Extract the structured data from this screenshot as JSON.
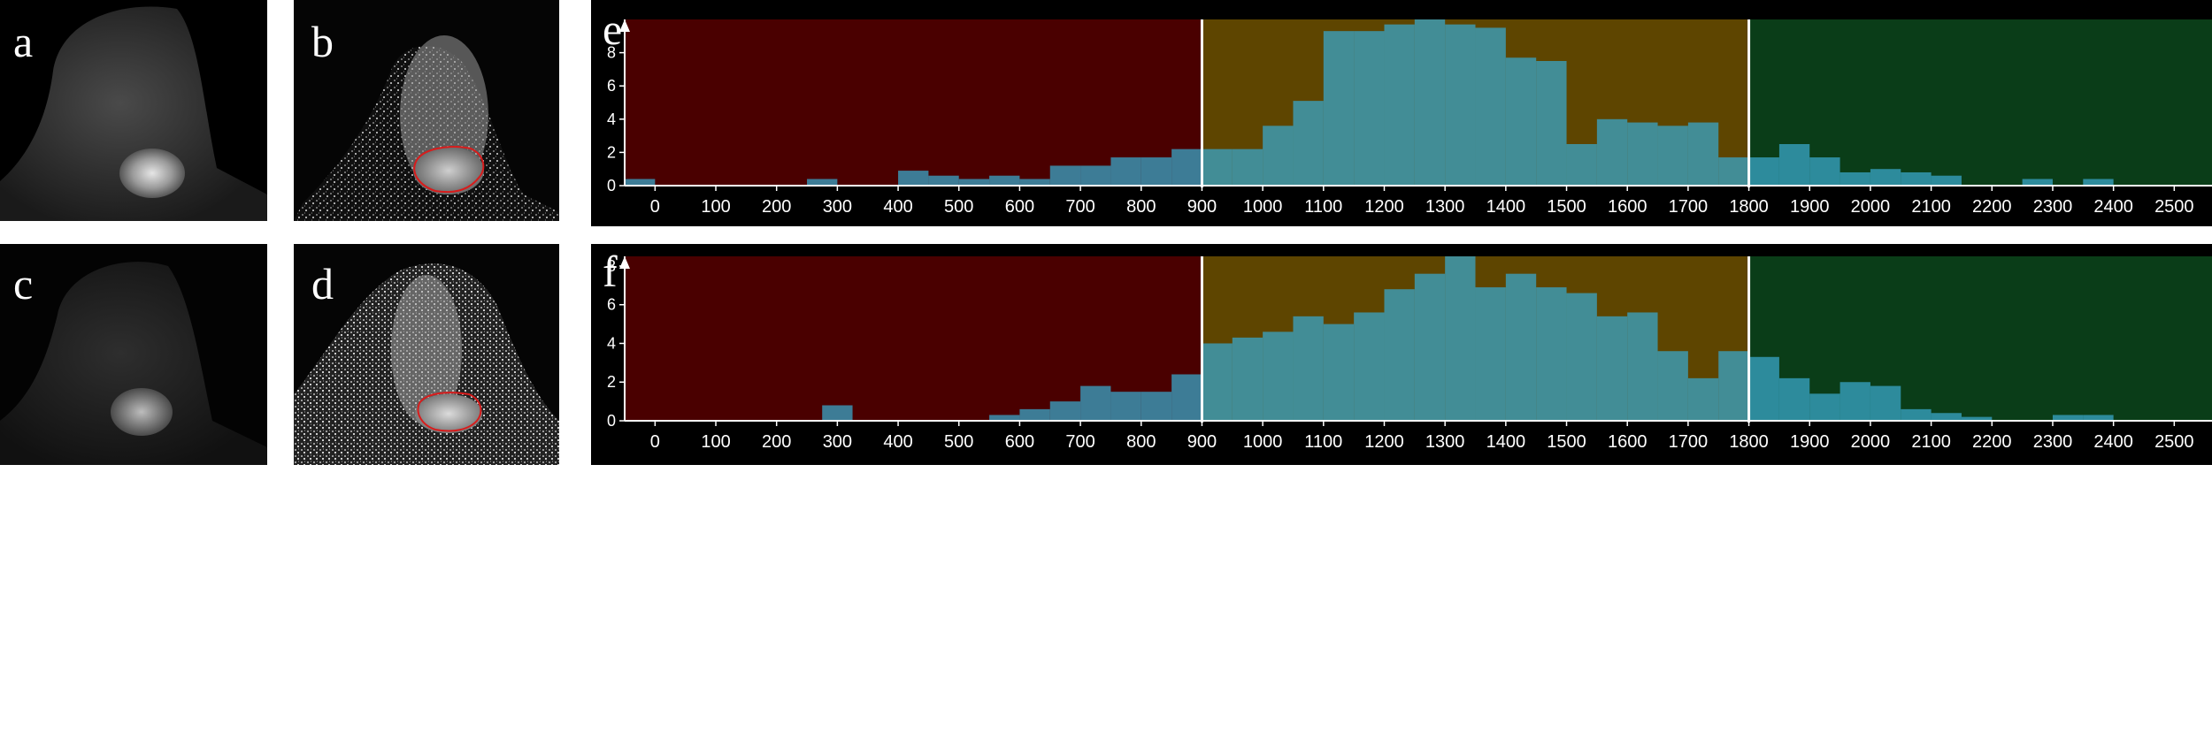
{
  "panels": {
    "a": {
      "label": "a"
    },
    "b": {
      "label": "b"
    },
    "c": {
      "label": "c"
    },
    "d": {
      "label": "d"
    }
  },
  "colors": {
    "low_region": "#4a0000",
    "mid_region": "#5e4500",
    "high_region": "#0a3d18",
    "bars": "#3aa6c8",
    "divider": "#ffffff",
    "roi_outline": "#d81c1c"
  },
  "chart_data": [
    {
      "panel_label": "e",
      "type": "bar",
      "xlim": [
        -50,
        2600
      ],
      "ylim": [
        0,
        10
      ],
      "x_ticks": [
        "0",
        "100",
        "200",
        "300",
        "400",
        "500",
        "600",
        "700",
        "800",
        "900",
        "1000",
        "1100",
        "1200",
        "1300",
        "1400",
        "1500",
        "1600",
        "1700",
        "1800",
        "1900",
        "2000",
        "2100",
        "2200",
        "2300",
        "2400",
        "2500"
      ],
      "y_ticks": [
        "0",
        "2",
        "4",
        "6",
        "8"
      ],
      "thresholds": [
        900,
        1800
      ],
      "bin_width": 50,
      "bins": [
        {
          "x": -25,
          "y": 0.4
        },
        {
          "x": 25,
          "y": 0
        },
        {
          "x": 75,
          "y": 0
        },
        {
          "x": 125,
          "y": 0
        },
        {
          "x": 175,
          "y": 0
        },
        {
          "x": 225,
          "y": 0
        },
        {
          "x": 275,
          "y": 0.4
        },
        {
          "x": 325,
          "y": 0
        },
        {
          "x": 375,
          "y": 0
        },
        {
          "x": 425,
          "y": 0.9
        },
        {
          "x": 475,
          "y": 0.6
        },
        {
          "x": 525,
          "y": 0.4
        },
        {
          "x": 575,
          "y": 0.6
        },
        {
          "x": 625,
          "y": 0.4
        },
        {
          "x": 675,
          "y": 1.2
        },
        {
          "x": 725,
          "y": 1.2
        },
        {
          "x": 775,
          "y": 1.7
        },
        {
          "x": 825,
          "y": 1.7
        },
        {
          "x": 875,
          "y": 2.2
        },
        {
          "x": 925,
          "y": 2.2
        },
        {
          "x": 975,
          "y": 2.2
        },
        {
          "x": 1025,
          "y": 3.6
        },
        {
          "x": 1075,
          "y": 5.1
        },
        {
          "x": 1125,
          "y": 9.3
        },
        {
          "x": 1175,
          "y": 9.3
        },
        {
          "x": 1225,
          "y": 9.7
        },
        {
          "x": 1275,
          "y": 10.0
        },
        {
          "x": 1325,
          "y": 9.7
        },
        {
          "x": 1375,
          "y": 9.5
        },
        {
          "x": 1425,
          "y": 7.7
        },
        {
          "x": 1475,
          "y": 7.5
        },
        {
          "x": 1525,
          "y": 2.5
        },
        {
          "x": 1575,
          "y": 4.0
        },
        {
          "x": 1625,
          "y": 3.8
        },
        {
          "x": 1675,
          "y": 3.6
        },
        {
          "x": 1725,
          "y": 3.8
        },
        {
          "x": 1775,
          "y": 1.7
        },
        {
          "x": 1825,
          "y": 1.7
        },
        {
          "x": 1875,
          "y": 2.5
        },
        {
          "x": 1925,
          "y": 1.7
        },
        {
          "x": 1975,
          "y": 0.8
        },
        {
          "x": 2025,
          "y": 1.0
        },
        {
          "x": 2075,
          "y": 0.8
        },
        {
          "x": 2125,
          "y": 0.6
        },
        {
          "x": 2175,
          "y": 0
        },
        {
          "x": 2225,
          "y": 0
        },
        {
          "x": 2275,
          "y": 0.4
        },
        {
          "x": 2325,
          "y": 0
        },
        {
          "x": 2375,
          "y": 0.4
        },
        {
          "x": 2425,
          "y": 0
        },
        {
          "x": 2475,
          "y": 0
        }
      ]
    },
    {
      "panel_label": "f",
      "type": "bar",
      "xlim": [
        -50,
        2600
      ],
      "ylim": [
        0,
        8.5
      ],
      "x_ticks": [
        "0",
        "100",
        "200",
        "300",
        "400",
        "500",
        "600",
        "700",
        "800",
        "900",
        "1000",
        "1100",
        "1200",
        "1300",
        "1400",
        "1500",
        "1600",
        "1700",
        "1800",
        "1900",
        "2000",
        "2100",
        "2200",
        "2300",
        "2400",
        "2500"
      ],
      "y_ticks": [
        "0",
        "2",
        "4",
        "6",
        "8"
      ],
      "thresholds": [
        900,
        1800
      ],
      "bin_width": 50,
      "bins": [
        {
          "x": -25,
          "y": 0
        },
        {
          "x": 25,
          "y": 0
        },
        {
          "x": 75,
          "y": 0
        },
        {
          "x": 125,
          "y": 0
        },
        {
          "x": 175,
          "y": 0
        },
        {
          "x": 225,
          "y": 0
        },
        {
          "x": 275,
          "y": 0
        },
        {
          "x": 300,
          "y": 0.8
        },
        {
          "x": 375,
          "y": 0
        },
        {
          "x": 425,
          "y": 0
        },
        {
          "x": 475,
          "y": 0
        },
        {
          "x": 525,
          "y": 0
        },
        {
          "x": 575,
          "y": 0.3
        },
        {
          "x": 625,
          "y": 0.6
        },
        {
          "x": 675,
          "y": 1.0
        },
        {
          "x": 725,
          "y": 1.8
        },
        {
          "x": 775,
          "y": 1.5
        },
        {
          "x": 825,
          "y": 1.5
        },
        {
          "x": 875,
          "y": 2.4
        },
        {
          "x": 925,
          "y": 4.0
        },
        {
          "x": 975,
          "y": 4.3
        },
        {
          "x": 1025,
          "y": 4.6
        },
        {
          "x": 1075,
          "y": 5.4
        },
        {
          "x": 1125,
          "y": 5.0
        },
        {
          "x": 1175,
          "y": 5.6
        },
        {
          "x": 1225,
          "y": 6.8
        },
        {
          "x": 1275,
          "y": 7.6
        },
        {
          "x": 1325,
          "y": 8.5
        },
        {
          "x": 1375,
          "y": 6.9
        },
        {
          "x": 1425,
          "y": 7.6
        },
        {
          "x": 1475,
          "y": 6.9
        },
        {
          "x": 1525,
          "y": 6.6
        },
        {
          "x": 1575,
          "y": 5.4
        },
        {
          "x": 1625,
          "y": 5.6
        },
        {
          "x": 1675,
          "y": 3.6
        },
        {
          "x": 1725,
          "y": 2.2
        },
        {
          "x": 1775,
          "y": 3.6
        },
        {
          "x": 1825,
          "y": 3.3
        },
        {
          "x": 1875,
          "y": 2.2
        },
        {
          "x": 1925,
          "y": 1.4
        },
        {
          "x": 1975,
          "y": 2.0
        },
        {
          "x": 2025,
          "y": 1.8
        },
        {
          "x": 2075,
          "y": 0.6
        },
        {
          "x": 2125,
          "y": 0.4
        },
        {
          "x": 2175,
          "y": 0.2
        },
        {
          "x": 2225,
          "y": 0
        },
        {
          "x": 2275,
          "y": 0
        },
        {
          "x": 2325,
          "y": 0.3
        },
        {
          "x": 2375,
          "y": 0.3
        },
        {
          "x": 2425,
          "y": 0
        },
        {
          "x": 2475,
          "y": 0
        }
      ]
    }
  ]
}
